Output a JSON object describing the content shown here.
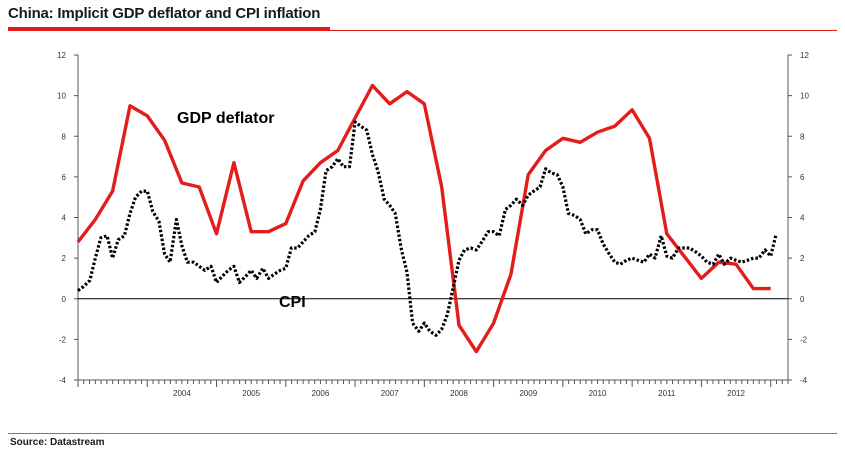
{
  "title": "China: Implicit GDP deflator and CPI inflation",
  "source": "Source: Datastream",
  "colors": {
    "gdp": "#e31d1a",
    "cpi": "#000000",
    "accent": "#e31d1a"
  },
  "chart_data": {
    "type": "line",
    "title": "China: Implicit GDP deflator and CPI inflation",
    "xlabel": "",
    "ylabel": "",
    "ylim": [
      -4,
      12
    ],
    "yticks": [
      -4,
      -2,
      0,
      2,
      4,
      6,
      8,
      10,
      12
    ],
    "xlim": [
      2003.0,
      2013.25
    ],
    "xticks": [
      "2004",
      "2005",
      "2006",
      "2007",
      "2008",
      "2009",
      "2010",
      "2011",
      "2012"
    ],
    "grid": false,
    "zero_line": true,
    "series": [
      {
        "name": "GDP deflator",
        "style": "solid",
        "x": [
          2003.0,
          2003.25,
          2003.5,
          2003.75,
          2004.0,
          2004.25,
          2004.5,
          2004.75,
          2005.0,
          2005.25,
          2005.5,
          2005.75,
          2006.0,
          2006.25,
          2006.5,
          2006.75,
          2007.0,
          2007.25,
          2007.5,
          2007.75,
          2008.0,
          2008.25,
          2008.5,
          2008.75,
          2009.0,
          2009.25,
          2009.5,
          2009.75,
          2010.0,
          2010.25,
          2010.5,
          2010.75,
          2011.0,
          2011.25,
          2011.5,
          2011.75,
          2012.0,
          2012.25,
          2012.5,
          2012.75,
          2013.0
        ],
        "y": [
          2.8,
          3.9,
          5.3,
          9.5,
          9.0,
          7.8,
          5.7,
          5.5,
          3.2,
          6.7,
          3.3,
          3.3,
          3.7,
          5.8,
          6.7,
          7.3,
          8.9,
          10.5,
          9.6,
          10.2,
          9.6,
          5.5,
          -1.3,
          -2.6,
          -1.2,
          1.2,
          6.1,
          7.3,
          7.9,
          7.7,
          8.2,
          8.5,
          9.3,
          7.9,
          3.2,
          2.1,
          1.0,
          1.8,
          1.7,
          0.5,
          0.5
        ]
      },
      {
        "name": "CPI",
        "style": "dotted",
        "x": [
          2003.0,
          2003.08,
          2003.17,
          2003.25,
          2003.33,
          2003.42,
          2003.5,
          2003.58,
          2003.67,
          2003.75,
          2003.83,
          2003.92,
          2004.0,
          2004.08,
          2004.17,
          2004.25,
          2004.33,
          2004.42,
          2004.5,
          2004.58,
          2004.67,
          2004.75,
          2004.83,
          2004.92,
          2005.0,
          2005.08,
          2005.17,
          2005.25,
          2005.33,
          2005.42,
          2005.5,
          2005.58,
          2005.67,
          2005.75,
          2005.83,
          2005.92,
          2006.0,
          2006.08,
          2006.17,
          2006.25,
          2006.33,
          2006.42,
          2006.5,
          2006.58,
          2006.67,
          2006.75,
          2006.83,
          2006.92,
          2007.0,
          2007.08,
          2007.17,
          2007.25,
          2007.33,
          2007.42,
          2007.5,
          2007.58,
          2007.67,
          2007.75,
          2007.83,
          2007.92,
          2008.0,
          2008.08,
          2008.17,
          2008.25,
          2008.33,
          2008.42,
          2008.5,
          2008.58,
          2008.67,
          2008.75,
          2008.83,
          2008.92,
          2009.0,
          2009.08,
          2009.17,
          2009.25,
          2009.33,
          2009.42,
          2009.5,
          2009.58,
          2009.67,
          2009.75,
          2009.83,
          2009.92,
          2010.0,
          2010.08,
          2010.17,
          2010.25,
          2010.33,
          2010.42,
          2010.5,
          2010.58,
          2010.67,
          2010.75,
          2010.83,
          2010.92,
          2011.0,
          2011.08,
          2011.17,
          2011.25,
          2011.33,
          2011.42,
          2011.5,
          2011.58,
          2011.67,
          2011.75,
          2011.83,
          2011.92,
          2012.0,
          2012.08,
          2012.17,
          2012.25,
          2012.33,
          2012.42,
          2012.5,
          2012.58,
          2012.67,
          2012.75,
          2012.83,
          2012.92,
          2013.0,
          2013.08
        ],
        "y": [
          0.4,
          0.6,
          0.9,
          2.0,
          3.0,
          3.1,
          2.0,
          2.9,
          3.1,
          4.2,
          5.0,
          5.3,
          5.3,
          4.3,
          3.8,
          2.2,
          1.8,
          3.9,
          2.6,
          1.8,
          1.8,
          1.6,
          1.4,
          1.6,
          0.8,
          1.1,
          1.4,
          1.6,
          0.8,
          1.1,
          1.4,
          1.0,
          1.5,
          1.0,
          1.2,
          1.4,
          1.5,
          2.5,
          2.5,
          2.8,
          3.1,
          3.3,
          4.4,
          6.3,
          6.5,
          6.9,
          6.5,
          6.5,
          8.7,
          8.5,
          8.3,
          7.1,
          6.3,
          4.9,
          4.6,
          4.2,
          2.4,
          1.3,
          -1.2,
          -1.6,
          -1.2,
          -1.6,
          -1.8,
          -1.5,
          -0.8,
          0.6,
          1.9,
          2.4,
          2.5,
          2.4,
          2.8,
          3.3,
          3.3,
          3.1,
          4.4,
          4.6,
          4.9,
          4.6,
          5.1,
          5.3,
          5.5,
          6.4,
          6.2,
          6.1,
          5.5,
          4.2,
          4.1,
          3.9,
          3.2,
          3.4,
          3.4,
          2.7,
          2.2,
          1.8,
          1.7,
          1.9,
          2.0,
          1.9,
          1.8,
          2.2,
          2.0,
          3.1,
          2.1,
          2.0,
          2.5,
          2.5,
          2.5,
          2.3,
          2.1,
          1.8,
          1.7,
          2.2,
          1.7,
          2.0,
          1.9,
          1.8,
          1.9,
          2.0,
          2.0,
          2.4,
          2.1,
          3.2
        ]
      }
    ],
    "annotations": [
      "GDP deflator",
      "CPI"
    ]
  }
}
